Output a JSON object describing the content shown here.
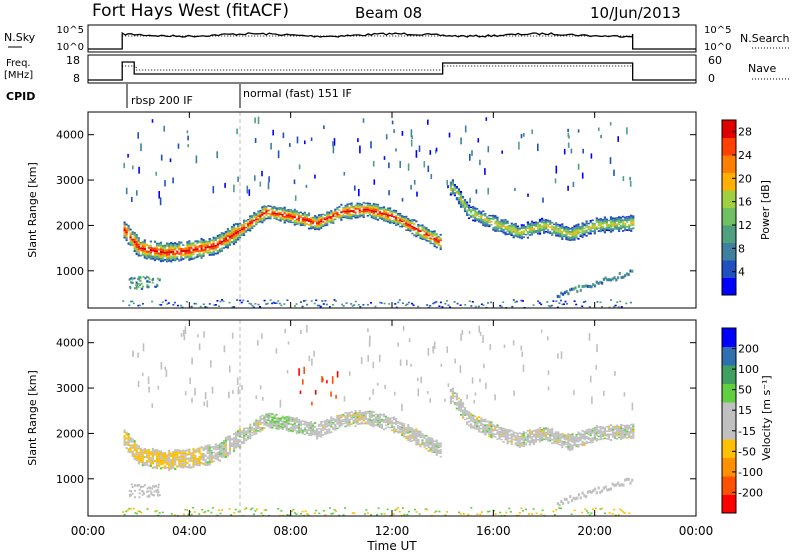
{
  "header": {
    "station": "Fort Hays West (fitACF)",
    "beam": "Beam 08",
    "date": "10/Jun/2013"
  },
  "noise_panel": {
    "left_label": "N.Sky",
    "left_ticks": [
      "10^5",
      "10^0"
    ],
    "right_ticks": [
      "10^5",
      "10^0"
    ],
    "right_label": "N.Search"
  },
  "freq_panel": {
    "left_label_1": "Freq.",
    "left_label_2": "[MHz]",
    "left_ticks": [
      "18",
      "8"
    ],
    "right_ticks": [
      "60",
      "0"
    ],
    "right_label": "Nave"
  },
  "cpid": {
    "label": "CPID",
    "modes": [
      {
        "name": "rbsp 200 IF",
        "start_hour": 1.35
      },
      {
        "name": "normal (fast) 151 IF",
        "start_hour": 6.0
      }
    ]
  },
  "colors": {
    "noise_line": "#000000",
    "power_scale": [
      "#0000ff",
      "#1f4fc0",
      "#3f7fa0",
      "#4fa080",
      "#6fc060",
      "#a0d040",
      "#ffb000",
      "#ff8000",
      "#ff4000",
      "#e00000"
    ],
    "velocity_scale": [
      "#ff0000",
      "#ff5000",
      "#ff9000",
      "#ffc000",
      "#c0c0c0",
      "#c0c0c0",
      "#60d040",
      "#40a060",
      "#3070b0",
      "#0000ff"
    ]
  },
  "chart_data": [
    {
      "type": "heatmap",
      "name": "power",
      "xlabel": "Time UT",
      "ylabel": "Slant Range [km]",
      "x_ticks": [
        "00:00",
        "04:00",
        "08:00",
        "12:00",
        "16:00",
        "20:00",
        "00:00"
      ],
      "y_ticks": [
        "1000",
        "2000",
        "3000",
        "4000"
      ],
      "xlim_hours": [
        0,
        24
      ],
      "ylim_km": [
        180,
        4500
      ],
      "colorbar_label": "Power [dB]",
      "colorbar_ticks": [
        "4",
        "8",
        "12",
        "16",
        "20",
        "24",
        "28"
      ],
      "colorbar_range": [
        0,
        30
      ],
      "data_window_hours": [
        1.35,
        21.5
      ],
      "main_echo_track": [
        {
          "hour": 1.4,
          "range_km": 1900
        },
        {
          "hour": 2.0,
          "range_km": 1500
        },
        {
          "hour": 3.0,
          "range_km": 1400
        },
        {
          "hour": 4.0,
          "range_km": 1450
        },
        {
          "hour": 5.0,
          "range_km": 1550
        },
        {
          "hour": 6.0,
          "range_km": 1900
        },
        {
          "hour": 7.0,
          "range_km": 2300
        },
        {
          "hour": 8.0,
          "range_km": 2200
        },
        {
          "hour": 9.0,
          "range_km": 2050
        },
        {
          "hour": 10.0,
          "range_km": 2300
        },
        {
          "hour": 11.0,
          "range_km": 2350
        },
        {
          "hour": 12.0,
          "range_km": 2200
        },
        {
          "hour": 13.0,
          "range_km": 1900
        },
        {
          "hour": 14.0,
          "range_km": 1600
        },
        {
          "hour": 14.3,
          "range_km": 2900
        },
        {
          "hour": 15.0,
          "range_km": 2300
        },
        {
          "hour": 16.0,
          "range_km": 2050
        },
        {
          "hour": 17.0,
          "range_km": 1850
        },
        {
          "hour": 18.0,
          "range_km": 2000
        },
        {
          "hour": 19.0,
          "range_km": 1800
        },
        {
          "hour": 20.0,
          "range_km": 2000
        },
        {
          "hour": 21.5,
          "range_km": 2050
        }
      ]
    },
    {
      "type": "heatmap",
      "name": "velocity",
      "xlabel": "Time UT",
      "ylabel": "Slant Range [km]",
      "x_ticks": [
        "00:00",
        "04:00",
        "08:00",
        "12:00",
        "16:00",
        "20:00",
        "00:00"
      ],
      "y_ticks": [
        "1000",
        "2000",
        "3000",
        "4000"
      ],
      "xlim_hours": [
        0,
        24
      ],
      "ylim_km": [
        180,
        4500
      ],
      "colorbar_label": "Velocity [m s⁻¹]",
      "colorbar_ticks": [
        "-200",
        "-100",
        "-50",
        "-15",
        "15",
        "50",
        "100",
        "200"
      ]
    }
  ]
}
